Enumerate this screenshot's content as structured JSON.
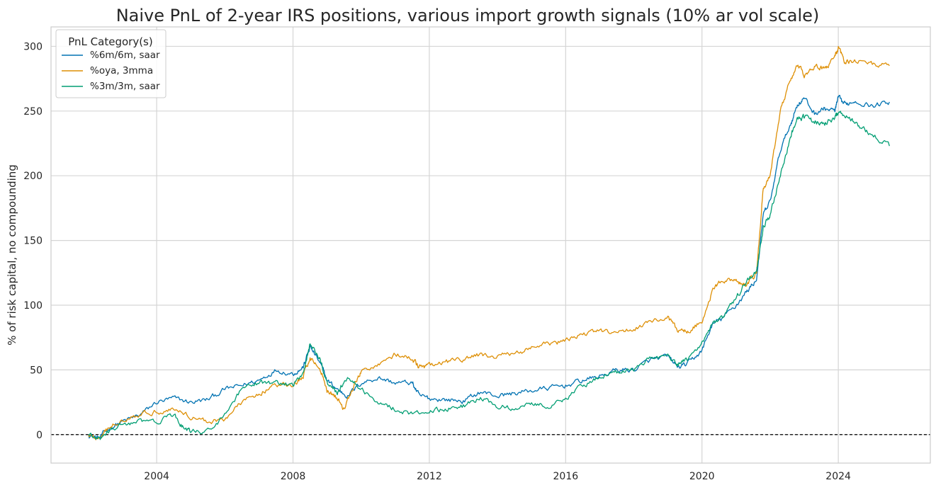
{
  "chart_data": {
    "type": "line",
    "title": "Naive PnL of 2-year IRS positions, various import growth signals (10% ar vol scale)",
    "xlabel": "",
    "ylabel": "% of risk capital, no compounding",
    "xlim": [
      2000.9,
      2026.7
    ],
    "ylim": [
      -22,
      315
    ],
    "x_ticks": [
      2004,
      2008,
      2012,
      2016,
      2020,
      2024
    ],
    "x_tick_labels": [
      "2004",
      "2008",
      "2012",
      "2016",
      "2020",
      "2024"
    ],
    "y_ticks": [
      0,
      50,
      100,
      150,
      200,
      250,
      300
    ],
    "y_tick_labels": [
      "0",
      "50",
      "100",
      "150",
      "200",
      "250",
      "300"
    ],
    "grid": true,
    "zero_line": {
      "value": 0,
      "style": "dashed",
      "color": "#000000"
    },
    "legend": {
      "title": "PnL Category(s)",
      "placement": "top-left"
    },
    "series": [
      {
        "name": "%6m/6m, saar",
        "color": "#0072b2",
        "points": [
          [
            2002.0,
            0
          ],
          [
            2002.3,
            -3
          ],
          [
            2002.6,
            5
          ],
          [
            2003.0,
            10
          ],
          [
            2003.5,
            15
          ],
          [
            2004.0,
            25
          ],
          [
            2004.5,
            28
          ],
          [
            2005.0,
            25
          ],
          [
            2005.5,
            27
          ],
          [
            2006.0,
            35
          ],
          [
            2006.5,
            38
          ],
          [
            2007.0,
            42
          ],
          [
            2007.5,
            50
          ],
          [
            2008.0,
            47
          ],
          [
            2008.3,
            52
          ],
          [
            2008.5,
            68
          ],
          [
            2008.8,
            55
          ],
          [
            2009.0,
            42
          ],
          [
            2009.3,
            35
          ],
          [
            2009.6,
            30
          ],
          [
            2010.0,
            40
          ],
          [
            2010.5,
            44
          ],
          [
            2011.0,
            40
          ],
          [
            2011.5,
            40
          ],
          [
            2011.7,
            30
          ],
          [
            2012.0,
            28
          ],
          [
            2012.5,
            27
          ],
          [
            2013.0,
            26
          ],
          [
            2013.5,
            33
          ],
          [
            2014.0,
            30
          ],
          [
            2014.5,
            32
          ],
          [
            2015.0,
            34
          ],
          [
            2015.5,
            36
          ],
          [
            2016.0,
            38
          ],
          [
            2016.5,
            42
          ],
          [
            2017.0,
            45
          ],
          [
            2017.5,
            50
          ],
          [
            2018.0,
            50
          ],
          [
            2018.5,
            58
          ],
          [
            2019.0,
            60
          ],
          [
            2019.3,
            52
          ],
          [
            2019.6,
            55
          ],
          [
            2020.0,
            65
          ],
          [
            2020.3,
            85
          ],
          [
            2020.6,
            90
          ],
          [
            2021.0,
            100
          ],
          [
            2021.3,
            110
          ],
          [
            2021.6,
            120
          ],
          [
            2021.8,
            170
          ],
          [
            2022.0,
            180
          ],
          [
            2022.3,
            220
          ],
          [
            2022.6,
            240
          ],
          [
            2022.8,
            255
          ],
          [
            2023.0,
            260
          ],
          [
            2023.3,
            248
          ],
          [
            2023.6,
            252
          ],
          [
            2023.9,
            250
          ],
          [
            2024.0,
            260
          ],
          [
            2024.2,
            255
          ],
          [
            2024.5,
            258
          ],
          [
            2025.0,
            254
          ],
          [
            2025.5,
            257
          ]
        ]
      },
      {
        "name": "%oya, 3mma",
        "color": "#de8f05",
        "points": [
          [
            2002.0,
            0
          ],
          [
            2002.3,
            -4
          ],
          [
            2002.6,
            5
          ],
          [
            2003.0,
            12
          ],
          [
            2003.5,
            16
          ],
          [
            2004.0,
            18
          ],
          [
            2004.5,
            20
          ],
          [
            2005.0,
            14
          ],
          [
            2005.5,
            10
          ],
          [
            2006.0,
            12
          ],
          [
            2006.5,
            25
          ],
          [
            2007.0,
            32
          ],
          [
            2007.5,
            38
          ],
          [
            2008.0,
            38
          ],
          [
            2008.3,
            45
          ],
          [
            2008.5,
            60
          ],
          [
            2008.8,
            50
          ],
          [
            2009.0,
            35
          ],
          [
            2009.3,
            28
          ],
          [
            2009.5,
            20
          ],
          [
            2009.8,
            38
          ],
          [
            2010.0,
            48
          ],
          [
            2010.5,
            55
          ],
          [
            2011.0,
            62
          ],
          [
            2011.5,
            58
          ],
          [
            2011.7,
            52
          ],
          [
            2012.0,
            53
          ],
          [
            2012.5,
            56
          ],
          [
            2013.0,
            58
          ],
          [
            2013.5,
            62
          ],
          [
            2014.0,
            60
          ],
          [
            2014.5,
            63
          ],
          [
            2015.0,
            67
          ],
          [
            2015.5,
            70
          ],
          [
            2016.0,
            72
          ],
          [
            2016.5,
            78
          ],
          [
            2017.0,
            80
          ],
          [
            2017.5,
            78
          ],
          [
            2018.0,
            82
          ],
          [
            2018.5,
            88
          ],
          [
            2019.0,
            90
          ],
          [
            2019.3,
            80
          ],
          [
            2019.6,
            80
          ],
          [
            2020.0,
            88
          ],
          [
            2020.3,
            110
          ],
          [
            2020.6,
            120
          ],
          [
            2021.0,
            118
          ],
          [
            2021.3,
            115
          ],
          [
            2021.6,
            125
          ],
          [
            2021.8,
            190
          ],
          [
            2022.0,
            200
          ],
          [
            2022.3,
            250
          ],
          [
            2022.6,
            275
          ],
          [
            2022.8,
            285
          ],
          [
            2023.0,
            278
          ],
          [
            2023.3,
            285
          ],
          [
            2023.6,
            282
          ],
          [
            2023.9,
            292
          ],
          [
            2024.0,
            298
          ],
          [
            2024.2,
            288
          ],
          [
            2024.5,
            290
          ],
          [
            2025.0,
            286
          ],
          [
            2025.5,
            285
          ]
        ]
      },
      {
        "name": "%3m/3m, saar",
        "color": "#029e73",
        "points": [
          [
            2002.0,
            0
          ],
          [
            2002.3,
            -4
          ],
          [
            2002.6,
            2
          ],
          [
            2003.0,
            8
          ],
          [
            2003.5,
            10
          ],
          [
            2004.0,
            10
          ],
          [
            2004.5,
            15
          ],
          [
            2004.8,
            5
          ],
          [
            2005.0,
            2
          ],
          [
            2005.5,
            3
          ],
          [
            2006.0,
            15
          ],
          [
            2006.5,
            35
          ],
          [
            2007.0,
            40
          ],
          [
            2007.5,
            40
          ],
          [
            2008.0,
            38
          ],
          [
            2008.3,
            48
          ],
          [
            2008.5,
            70
          ],
          [
            2008.8,
            58
          ],
          [
            2009.0,
            40
          ],
          [
            2009.3,
            32
          ],
          [
            2009.6,
            45
          ],
          [
            2010.0,
            35
          ],
          [
            2010.5,
            25
          ],
          [
            2011.0,
            20
          ],
          [
            2011.5,
            16
          ],
          [
            2012.0,
            18
          ],
          [
            2012.5,
            20
          ],
          [
            2013.0,
            22
          ],
          [
            2013.5,
            28
          ],
          [
            2014.0,
            22
          ],
          [
            2014.5,
            20
          ],
          [
            2015.0,
            25
          ],
          [
            2015.5,
            22
          ],
          [
            2016.0,
            28
          ],
          [
            2016.5,
            38
          ],
          [
            2017.0,
            45
          ],
          [
            2017.5,
            48
          ],
          [
            2018.0,
            50
          ],
          [
            2018.5,
            60
          ],
          [
            2019.0,
            60
          ],
          [
            2019.3,
            55
          ],
          [
            2019.6,
            58
          ],
          [
            2020.0,
            72
          ],
          [
            2020.3,
            85
          ],
          [
            2020.6,
            90
          ],
          [
            2021.0,
            105
          ],
          [
            2021.3,
            118
          ],
          [
            2021.6,
            125
          ],
          [
            2021.8,
            160
          ],
          [
            2022.0,
            170
          ],
          [
            2022.3,
            200
          ],
          [
            2022.6,
            230
          ],
          [
            2022.8,
            245
          ],
          [
            2023.0,
            245
          ],
          [
            2023.3,
            242
          ],
          [
            2023.6,
            240
          ],
          [
            2023.9,
            245
          ],
          [
            2024.0,
            250
          ],
          [
            2024.3,
            245
          ],
          [
            2024.6,
            238
          ],
          [
            2025.0,
            232
          ],
          [
            2025.5,
            223
          ]
        ]
      }
    ]
  }
}
